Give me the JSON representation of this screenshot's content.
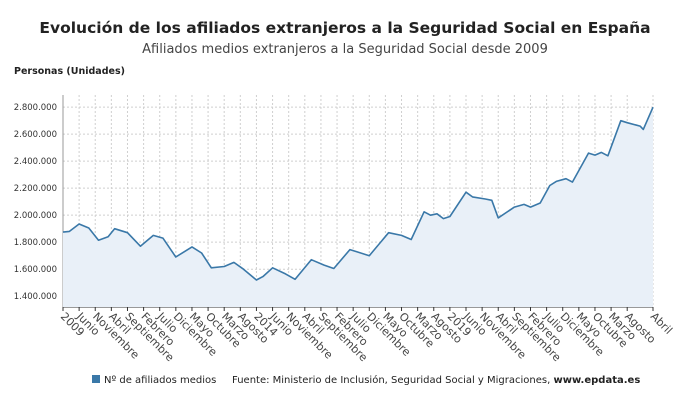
{
  "chart_data": {
    "type": "area",
    "title": "Evolución de los afiliados extranjeros a la Seguridad Social en España",
    "subtitle": "Afiliados medios extranjeros a la Seguridad Social desde 2009",
    "ylabel": "Personas (Unidades)",
    "xlabel": "",
    "ylim": [
      1320000,
      2890000
    ],
    "xlim": [
      "2009-01",
      "2024-04"
    ],
    "grid": true,
    "legend_position": "bottom-left",
    "colors": {
      "line": "#3a78a8",
      "fill": "#e9f0f8",
      "grid": "#cfcfcf",
      "legend": "#3a78a8"
    },
    "y_ticks": [
      "1.400.000",
      "1.600.000",
      "1.800.000",
      "2.000.000",
      "2.200.000",
      "2.400.000",
      "2.600.000",
      "2.800.000"
    ],
    "y_tick_values": [
      1400000,
      1600000,
      1800000,
      2000000,
      2200000,
      2400000,
      2600000,
      2800000
    ],
    "x_ticks": [
      {
        "date": "2009-01",
        "label": "2009"
      },
      {
        "date": "2009-06",
        "label": "Junio"
      },
      {
        "date": "2009-11",
        "label": "Noviembre"
      },
      {
        "date": "2010-04",
        "label": "Abril"
      },
      {
        "date": "2010-09",
        "label": "Septiembre"
      },
      {
        "date": "2011-02",
        "label": "Febrero"
      },
      {
        "date": "2011-07",
        "label": "Julio"
      },
      {
        "date": "2011-12",
        "label": "Diciembre"
      },
      {
        "date": "2012-05",
        "label": "Mayo"
      },
      {
        "date": "2012-10",
        "label": "Octubre"
      },
      {
        "date": "2013-03",
        "label": "Marzo"
      },
      {
        "date": "2013-08",
        "label": "Agosto"
      },
      {
        "date": "2014-01",
        "label": "2014"
      },
      {
        "date": "2014-06",
        "label": "Junio"
      },
      {
        "date": "2014-11",
        "label": "Noviembre"
      },
      {
        "date": "2015-04",
        "label": "Abril"
      },
      {
        "date": "2015-09",
        "label": "Septiembre"
      },
      {
        "date": "2016-02",
        "label": "Febrero"
      },
      {
        "date": "2016-07",
        "label": "Julio"
      },
      {
        "date": "2016-12",
        "label": "Diciembre"
      },
      {
        "date": "2017-05",
        "label": "Mayo"
      },
      {
        "date": "2017-10",
        "label": "Octubre"
      },
      {
        "date": "2018-03",
        "label": "Marzo"
      },
      {
        "date": "2018-08",
        "label": "Agosto"
      },
      {
        "date": "2019-01",
        "label": "2019"
      },
      {
        "date": "2019-06",
        "label": "Junio"
      },
      {
        "date": "2019-11",
        "label": "Noviembre"
      },
      {
        "date": "2020-04",
        "label": "Abril"
      },
      {
        "date": "2020-09",
        "label": "Septiembre"
      },
      {
        "date": "2021-02",
        "label": "Febrero"
      },
      {
        "date": "2021-07",
        "label": "Julio"
      },
      {
        "date": "2021-12",
        "label": "Diciembre"
      },
      {
        "date": "2022-05",
        "label": "Mayo"
      },
      {
        "date": "2022-10",
        "label": "Octubre"
      },
      {
        "date": "2023-03",
        "label": "Marzo"
      },
      {
        "date": "2023-08",
        "label": "Agosto"
      },
      {
        "date": "2024-04",
        "label": "Abril"
      }
    ],
    "series": [
      {
        "name": "Nº de afiliados medios",
        "points": [
          [
            "2009-01",
            1875000
          ],
          [
            "2009-03",
            1880000
          ],
          [
            "2009-06",
            1935000
          ],
          [
            "2009-09",
            1905000
          ],
          [
            "2009-12",
            1815000
          ],
          [
            "2010-03",
            1840000
          ],
          [
            "2010-05",
            1900000
          ],
          [
            "2010-09",
            1870000
          ],
          [
            "2011-01",
            1770000
          ],
          [
            "2011-05",
            1850000
          ],
          [
            "2011-08",
            1830000
          ],
          [
            "2011-12",
            1690000
          ],
          [
            "2012-05",
            1765000
          ],
          [
            "2012-08",
            1720000
          ],
          [
            "2012-11",
            1610000
          ],
          [
            "2013-03",
            1620000
          ],
          [
            "2013-06",
            1650000
          ],
          [
            "2013-09",
            1600000
          ],
          [
            "2014-01",
            1520000
          ],
          [
            "2014-03",
            1545000
          ],
          [
            "2014-06",
            1610000
          ],
          [
            "2014-10",
            1565000
          ],
          [
            "2015-01",
            1525000
          ],
          [
            "2015-06",
            1670000
          ],
          [
            "2015-10",
            1630000
          ],
          [
            "2016-01",
            1605000
          ],
          [
            "2016-06",
            1745000
          ],
          [
            "2016-08",
            1730000
          ],
          [
            "2016-12",
            1700000
          ],
          [
            "2017-06",
            1870000
          ],
          [
            "2017-10",
            1850000
          ],
          [
            "2018-01",
            1820000
          ],
          [
            "2018-05",
            2025000
          ],
          [
            "2018-07",
            2000000
          ],
          [
            "2018-09",
            2010000
          ],
          [
            "2018-11",
            1975000
          ],
          [
            "2019-01",
            1990000
          ],
          [
            "2019-06",
            2170000
          ],
          [
            "2019-08",
            2135000
          ],
          [
            "2019-12",
            2120000
          ],
          [
            "2020-02",
            2110000
          ],
          [
            "2020-04",
            1980000
          ],
          [
            "2020-09",
            2060000
          ],
          [
            "2020-12",
            2080000
          ],
          [
            "2021-02",
            2060000
          ],
          [
            "2021-05",
            2090000
          ],
          [
            "2021-08",
            2220000
          ],
          [
            "2021-10",
            2250000
          ],
          [
            "2022-01",
            2270000
          ],
          [
            "2022-03",
            2245000
          ],
          [
            "2022-08",
            2460000
          ],
          [
            "2022-10",
            2445000
          ],
          [
            "2022-12",
            2465000
          ],
          [
            "2023-02",
            2440000
          ],
          [
            "2023-06",
            2700000
          ],
          [
            "2023-08",
            2685000
          ],
          [
            "2023-12",
            2660000
          ],
          [
            "2024-01",
            2635000
          ],
          [
            "2024-04",
            2800000
          ]
        ]
      }
    ],
    "source": "Fuente: Ministerio de Inclusión, Seguridad Social y Migraciones, ",
    "source_link": "www.epdata.es"
  }
}
